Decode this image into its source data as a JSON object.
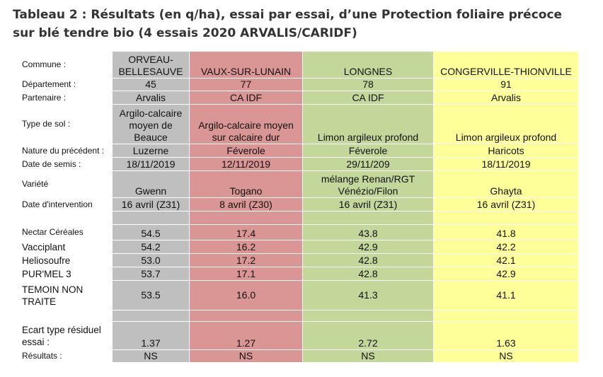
{
  "title": "Tableau 2 : Résultats (en q/ha), essai par essai, d’une Protection foliaire précoce sur blé tendre bio (4 essais 2020 ARVALIS/CARIDF)",
  "table": {
    "labels": {
      "commune": "Commune :",
      "departement": "Département :",
      "partenaire": "Partenaire :",
      "sol": "Type de sol :",
      "precedent": "Nature du précédent :",
      "semis": "Date de semis :",
      "variete": "Variété",
      "intervention": "Date d'intervention",
      "nectar": "Nectar Céréales",
      "vacciplant": "Vacciplant",
      "heliosoufre": "Heliosoufre",
      "purmel": "PUR'MEL 3",
      "temoin": "TEMOIN NON TRAITE",
      "ecart": "Ecart type résiduel essai :",
      "resultats": "Résultats :"
    },
    "columns": [
      {
        "commune": "ORVEAU-BELLESAUVE",
        "departement": "45",
        "partenaire": "Arvalis",
        "sol": "Argilo-calcaire moyen de Beauce",
        "precedent": "Luzerne",
        "semis": "18/11/2019",
        "variete": "Gwenn",
        "intervention": "16 avril  (Z31)",
        "nectar": "54.5",
        "vacciplant": "54.2",
        "heliosoufre": "53.0",
        "purmel": "53.7",
        "temoin": "53.5",
        "ecart": "1.37",
        "resultats": "NS",
        "color": "#bfbfbf"
      },
      {
        "commune": "VAUX-SUR-LUNAIN",
        "departement": "77",
        "partenaire": "CA IDF",
        "sol": "Argilo-calcaire moyen sur calcaire dur",
        "precedent": "Féverole",
        "semis": "12/11/2019",
        "variete": "Togano",
        "intervention": "8 avril (Z30)",
        "nectar": "17.4",
        "vacciplant": "16.2",
        "heliosoufre": "17.2",
        "purmel": "17.1",
        "temoin": "16.0",
        "ecart": "1.27",
        "resultats": "NS",
        "color": "#da9694"
      },
      {
        "commune": "LONGNES",
        "departement": "78",
        "partenaire": "CA IDF",
        "sol": "Limon argileux profond",
        "precedent": "Féverole",
        "semis": "29/11/209",
        "variete": "mélange Renan/RGT Vénézio/Filon",
        "intervention": "16 avril (Z31)",
        "nectar": "43.8",
        "vacciplant": "42.9",
        "heliosoufre": "42.8",
        "purmel": "42.8",
        "temoin": "41.3",
        "ecart": "2.72",
        "resultats": "NS",
        "color": "#c4d79b"
      },
      {
        "commune": "CONGERVILLE-THIONVILLE",
        "departement": "91",
        "partenaire": "Arvalis",
        "sol": "Limon argileux profond",
        "precedent": "Haricots",
        "semis": "18/11/2019",
        "variete": "Ghayta",
        "intervention": "16 avril (Z31)",
        "nectar": "41.8",
        "vacciplant": "42.2",
        "heliosoufre": "42.1",
        "purmel": "42.9",
        "temoin": "41.1",
        "ecart": "1.63",
        "resultats": "NS",
        "color": "#ffff99"
      }
    ]
  }
}
